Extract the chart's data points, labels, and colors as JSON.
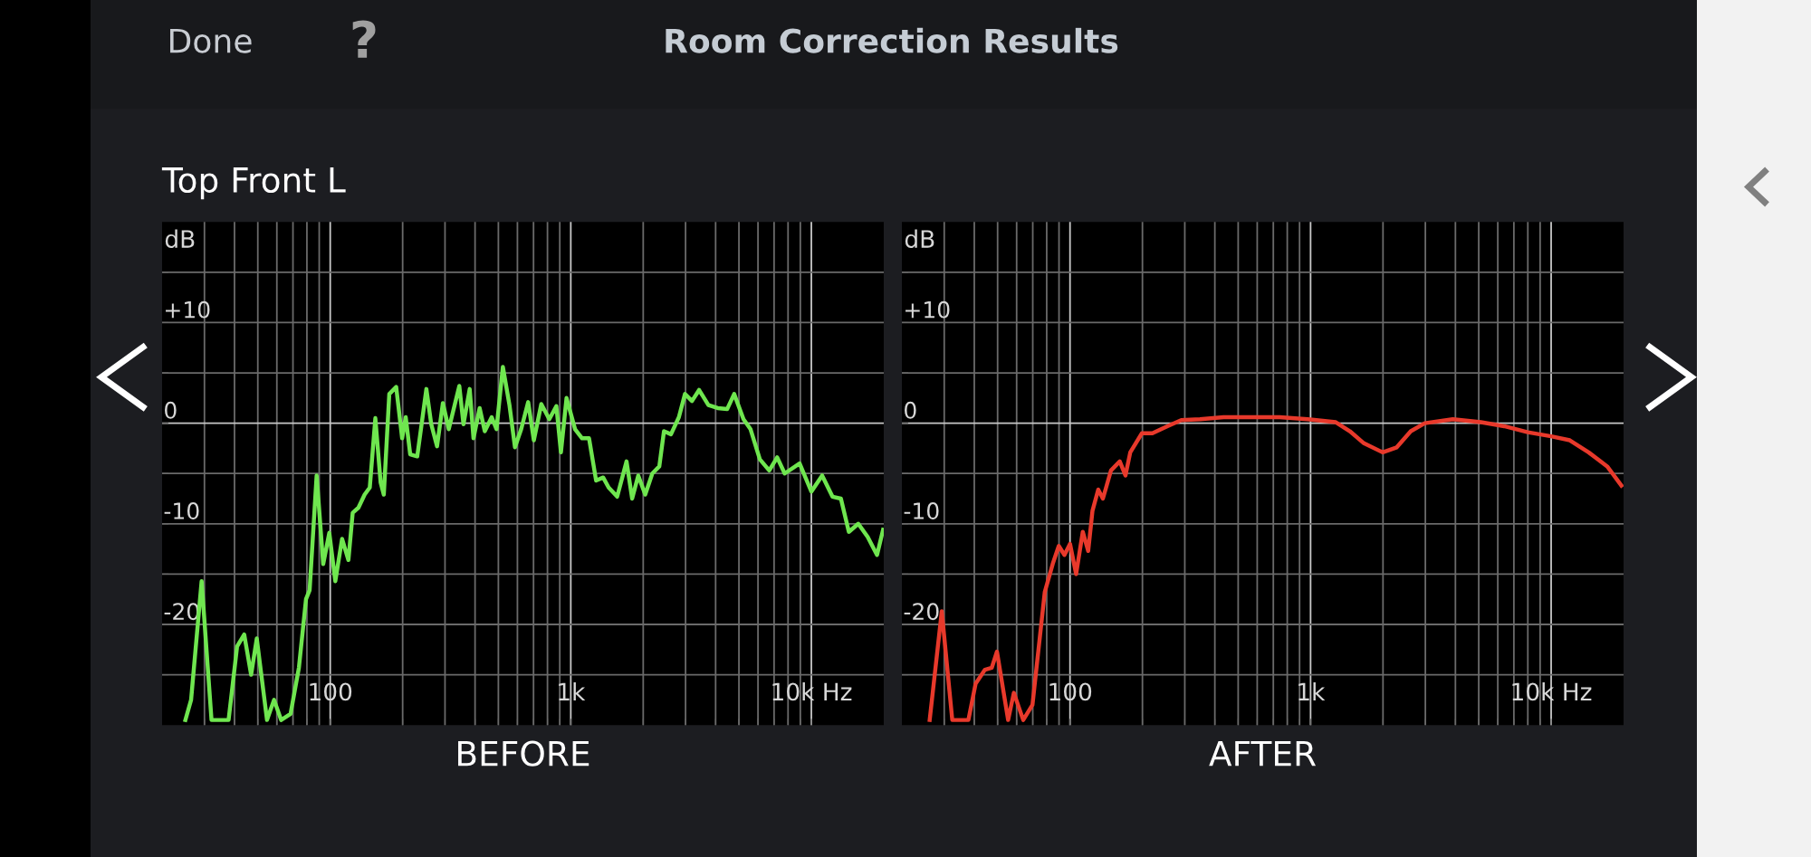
{
  "chart_data": [
    {
      "type": "line",
      "title": "Room Correction Results",
      "subtitle": "Top Front L",
      "annotations": [
        "Done",
        "?"
      ],
      "xlabel": "BEFORE",
      "ylabel": "dB",
      "log": "x",
      "grid": true,
      "xlim": [
        20,
        20000
      ],
      "ylim": [
        -30,
        20
      ],
      "xticks": [
        {
          "value": 30,
          "label": null
        },
        {
          "value": 40,
          "label": null
        },
        {
          "value": 50,
          "label": null
        },
        {
          "value": 60,
          "label": null
        },
        {
          "value": 70,
          "label": null
        },
        {
          "value": 80,
          "label": null
        },
        {
          "value": 90,
          "label": null
        },
        {
          "value": 100,
          "label": "100"
        },
        {
          "value": 200,
          "label": null
        },
        {
          "value": 300,
          "label": null
        },
        {
          "value": 400,
          "label": null
        },
        {
          "value": 500,
          "label": null
        },
        {
          "value": 600,
          "label": null
        },
        {
          "value": 700,
          "label": null
        },
        {
          "value": 800,
          "label": null
        },
        {
          "value": 900,
          "label": null
        },
        {
          "value": 1000,
          "label": "1k"
        },
        {
          "value": 2000,
          "label": null
        },
        {
          "value": 3000,
          "label": null
        },
        {
          "value": 4000,
          "label": null
        },
        {
          "value": 5000,
          "label": null
        },
        {
          "value": 6000,
          "label": null
        },
        {
          "value": 7000,
          "label": null
        },
        {
          "value": 8000,
          "label": null
        },
        {
          "value": 9000,
          "label": null
        },
        {
          "value": 10000,
          "label": "10k Hz"
        }
      ],
      "yticks": [
        {
          "value": -25,
          "label": null
        },
        {
          "value": -20,
          "label": "-20"
        },
        {
          "value": -15,
          "label": null
        },
        {
          "value": -10,
          "label": "-10"
        },
        {
          "value": -5,
          "label": null
        },
        0,
        {
          "value": 5,
          "label": null
        },
        {
          "value": 10,
          "label": "+10"
        },
        {
          "value": 15,
          "label": null
        }
      ],
      "series": [
        {
          "color": "#6fe64f",
          "x": [
            25,
            26.4,
            29.2,
            32.1,
            37.8,
            41,
            43.9,
            46.9,
            49.5,
            54.6,
            58.4,
            62.5,
            68.4,
            74.1,
            79.3,
            82.1,
            87.8,
            93.5,
            99.1,
            105,
            112,
            119,
            124,
            131,
            139,
            146,
            154,
            162,
            167,
            176,
            188,
            199,
            206,
            215,
            230,
            251,
            263,
            278,
            294,
            311,
            344,
            358,
            380,
            394,
            418,
            439,
            469,
            491,
            522,
            556,
            586,
            622,
            665,
            702,
            754,
            814,
            871,
            910,
            960,
            1042,
            1114,
            1191,
            1274,
            1363,
            1437,
            1559,
            1705,
            1799,
            1907,
            2039,
            2182,
            2333,
            2440,
            2609,
            2814,
            2983,
            3190,
            3414,
            3733,
            4083,
            4467,
            4777,
            5224,
            5587,
            6110,
            6683,
            7211,
            7748,
            8937,
            10000,
            11090,
            12240,
            13270,
            14320,
            15670,
            17140,
            18750,
            19870
          ],
          "values": [
            -29.5,
            -27.5,
            -15.7,
            -29.5,
            -29.5,
            -22.2,
            -21,
            -25,
            -21.4,
            -29.5,
            -27.5,
            -29.5,
            -28.9,
            -24.3,
            -17.5,
            -16.6,
            -5.2,
            -14,
            -10.9,
            -15.7,
            -11.5,
            -13.6,
            -8.9,
            -8.4,
            -7.1,
            -6.4,
            0.5,
            -5.9,
            -7.1,
            2.9,
            3.6,
            -1.5,
            0.6,
            -3.1,
            -3.3,
            3.4,
            -0.1,
            -2.3,
            2,
            -0.6,
            3.7,
            -0.1,
            3.4,
            -1.5,
            1.5,
            -0.8,
            0.6,
            -0.6,
            5.6,
            1.8,
            -2.4,
            -0.6,
            2.1,
            -1.7,
            1.9,
            0.4,
            1.7,
            -2.9,
            2.5,
            -0.6,
            -1.5,
            -1.5,
            -5.7,
            -5.4,
            -6.4,
            -7.3,
            -3.8,
            -7.5,
            -5.2,
            -7.1,
            -5,
            -4.3,
            -0.8,
            -1.1,
            0.6,
            2.9,
            2.2,
            3.3,
            1.8,
            1.5,
            1.4,
            2.9,
            0.4,
            -0.6,
            -3.6,
            -4.7,
            -3.4,
            -5,
            -4,
            -6.8,
            -5.2,
            -7.3,
            -7.5,
            -10.8,
            -10,
            -11.3,
            -13.1,
            -10.6
          ]
        }
      ]
    },
    {
      "type": "line",
      "xlabel": "AFTER",
      "ylabel": "dB",
      "log": "x",
      "grid": true,
      "xlim": [
        20,
        20000
      ],
      "ylim": [
        -30,
        20
      ],
      "xticks": [
        {
          "value": 30,
          "label": null
        },
        {
          "value": 40,
          "label": null
        },
        {
          "value": 50,
          "label": null
        },
        {
          "value": 60,
          "label": null
        },
        {
          "value": 70,
          "label": null
        },
        {
          "value": 80,
          "label": null
        },
        {
          "value": 90,
          "label": null
        },
        {
          "value": 100,
          "label": "100"
        },
        {
          "value": 200,
          "label": null
        },
        {
          "value": 300,
          "label": null
        },
        {
          "value": 400,
          "label": null
        },
        {
          "value": 500,
          "label": null
        },
        {
          "value": 600,
          "label": null
        },
        {
          "value": 700,
          "label": null
        },
        {
          "value": 800,
          "label": null
        },
        {
          "value": 900,
          "label": null
        },
        {
          "value": 1000,
          "label": "1k"
        },
        {
          "value": 2000,
          "label": null
        },
        {
          "value": 3000,
          "label": null
        },
        {
          "value": 4000,
          "label": null
        },
        {
          "value": 5000,
          "label": null
        },
        {
          "value": 6000,
          "label": null
        },
        {
          "value": 7000,
          "label": null
        },
        {
          "value": 8000,
          "label": null
        },
        {
          "value": 9000,
          "label": null
        },
        {
          "value": 10000,
          "label": "10k Hz"
        }
      ],
      "yticks": [
        {
          "value": -25,
          "label": null
        },
        {
          "value": -20,
          "label": "-20"
        },
        {
          "value": -15,
          "label": null
        },
        {
          "value": -10,
          "label": "-10"
        },
        {
          "value": -5,
          "label": null
        },
        0,
        {
          "value": 5,
          "label": null
        },
        {
          "value": 10,
          "label": "+10"
        },
        {
          "value": 15,
          "label": null
        }
      ],
      "series": [
        {
          "color": "#e8392b",
          "x": [
            26.1,
            29.3,
            32.4,
            37.8,
            40.5,
            44.3,
            47.3,
            49.7,
            55.3,
            58.4,
            63.9,
            69.8,
            78.5,
            84.7,
            89.8,
            94.8,
            100,
            106,
            113,
            119,
            124,
            131,
            137,
            148,
            161,
            170,
            178,
            199,
            220,
            254,
            290,
            347,
            435,
            569,
            744,
            973,
            1273,
            1457,
            1666,
            1993,
            2281,
            2609,
            2984,
            3902,
            5105,
            6383,
            7991,
            10000,
            11960,
            14320,
            17110,
            19590
          ],
          "values": [
            -29.5,
            -18.7,
            -29.5,
            -29.5,
            -25.9,
            -24.5,
            -24.3,
            -22.7,
            -29.5,
            -26.8,
            -29.5,
            -28,
            -16.8,
            -14,
            -12.2,
            -13.1,
            -12,
            -15,
            -10.8,
            -12.7,
            -8.7,
            -6.6,
            -7.5,
            -4.7,
            -3.8,
            -5.2,
            -2.9,
            -1,
            -1,
            -0.3,
            0.3,
            0.4,
            0.6,
            0.6,
            0.6,
            0.4,
            0.1,
            -0.8,
            -2,
            -2.9,
            -2.4,
            -0.8,
            0,
            0.4,
            0.1,
            -0.3,
            -0.9,
            -1.3,
            -1.7,
            -2.9,
            -4.3,
            -6.2
          ]
        }
      ]
    }
  ]
}
